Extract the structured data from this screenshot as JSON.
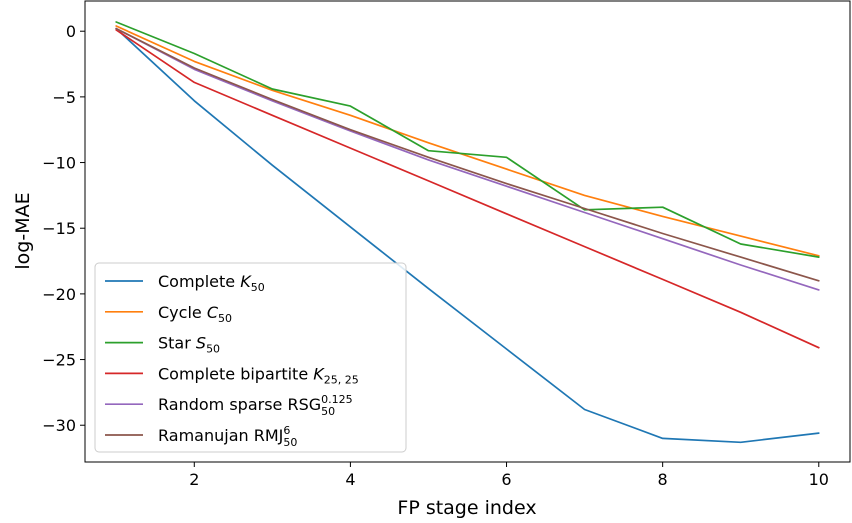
{
  "chart_data": {
    "type": "line",
    "title": "",
    "xlabel": "FP stage index",
    "ylabel": "log-MAE",
    "xlim": [
      0.6,
      10.4
    ],
    "ylim": [
      -32.8,
      2.3
    ],
    "xticks": [
      2,
      4,
      6,
      8,
      10
    ],
    "yticks": [
      0,
      -5,
      -10,
      -15,
      -20,
      -25,
      -30
    ],
    "grid": false,
    "legend_position": "lower-left",
    "x": [
      1,
      2,
      3,
      4,
      5,
      6,
      7,
      8,
      9,
      10
    ],
    "series": [
      {
        "name": "Complete K50",
        "label_main": "Complete ",
        "label_italic": "K",
        "label_sub": "50",
        "label_sup": "",
        "color": "#1f77b4",
        "values": [
          0.2,
          -5.3,
          -10.2,
          -14.9,
          -19.6,
          -24.2,
          -28.8,
          -31.0,
          -31.3,
          -30.6
        ]
      },
      {
        "name": "Cycle C50",
        "label_main": "Cycle ",
        "label_italic": "C",
        "label_sub": "50",
        "label_sup": "",
        "color": "#ff7f0e",
        "values": [
          0.4,
          -2.3,
          -4.5,
          -6.4,
          -8.5,
          -10.5,
          -12.5,
          -14.1,
          -15.6,
          -17.1
        ]
      },
      {
        "name": "Star S50",
        "label_main": "Star ",
        "label_italic": "S",
        "label_sub": "50",
        "label_sup": "",
        "color": "#2ca02c",
        "values": [
          0.7,
          -1.7,
          -4.4,
          -5.7,
          -9.1,
          -9.6,
          -13.6,
          -13.4,
          -16.2,
          -17.2
        ]
      },
      {
        "name": "Complete bipartite K25,25",
        "label_main": "Complete bipartite ",
        "label_italic": "K",
        "label_sub": "25, 25",
        "label_sup": "",
        "color": "#d62728",
        "values": [
          0.1,
          -3.9,
          -6.4,
          -8.9,
          -11.4,
          -13.9,
          -16.4,
          -18.9,
          -21.4,
          -24.1
        ]
      },
      {
        "name": "Random sparse RSG50^0.125",
        "label_main": "Random sparse RSG",
        "label_italic": "",
        "label_sub": "50",
        "label_sup": "0.125",
        "color": "#9467bd",
        "values": [
          0.2,
          -2.9,
          -5.3,
          -7.6,
          -9.8,
          -11.8,
          -13.8,
          -15.8,
          -17.8,
          -19.7
        ]
      },
      {
        "name": "Ramanujan RMJ50^6",
        "label_main": "Ramanujan RMJ",
        "label_italic": "",
        "label_sub": "50",
        "label_sup": "6",
        "color": "#8c564b",
        "values": [
          0.2,
          -2.8,
          -5.2,
          -7.5,
          -9.6,
          -11.6,
          -13.5,
          -15.4,
          -17.2,
          -19.0
        ]
      }
    ]
  }
}
